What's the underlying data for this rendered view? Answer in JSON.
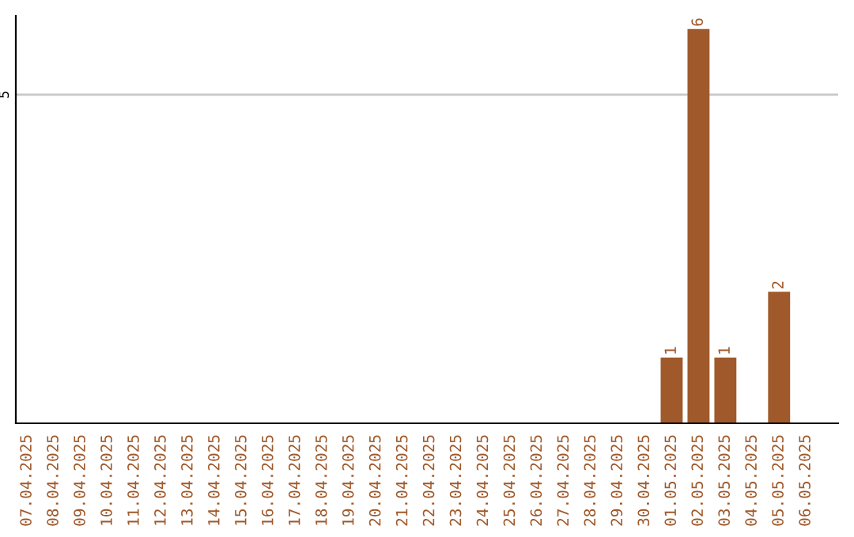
{
  "chart_data": {
    "type": "bar",
    "categories": [
      "07.04.2025",
      "08.04.2025",
      "09.04.2025",
      "10.04.2025",
      "11.04.2025",
      "12.04.2025",
      "13.04.2025",
      "14.04.2025",
      "15.04.2025",
      "16.04.2025",
      "17.04.2025",
      "18.04.2025",
      "19.04.2025",
      "20.04.2025",
      "21.04.2025",
      "22.04.2025",
      "23.04.2025",
      "24.04.2025",
      "25.04.2025",
      "26.04.2025",
      "27.04.2025",
      "28.04.2025",
      "29.04.2025",
      "30.04.2025",
      "01.05.2025",
      "02.05.2025",
      "03.05.2025",
      "04.05.2025",
      "05.05.2025",
      "06.05.2025"
    ],
    "values": [
      null,
      null,
      null,
      null,
      null,
      null,
      null,
      null,
      null,
      null,
      null,
      null,
      null,
      null,
      null,
      null,
      null,
      null,
      null,
      null,
      null,
      null,
      null,
      null,
      1,
      6,
      1,
      null,
      2,
      null
    ],
    "data_labels": true,
    "color": "#a0592a",
    "ylim": [
      0,
      6.2
    ],
    "ref_lines": [
      {
        "axis": "y",
        "value": 5,
        "label": "5",
        "color": "#c8c8c8"
      }
    ],
    "legend": false
  }
}
